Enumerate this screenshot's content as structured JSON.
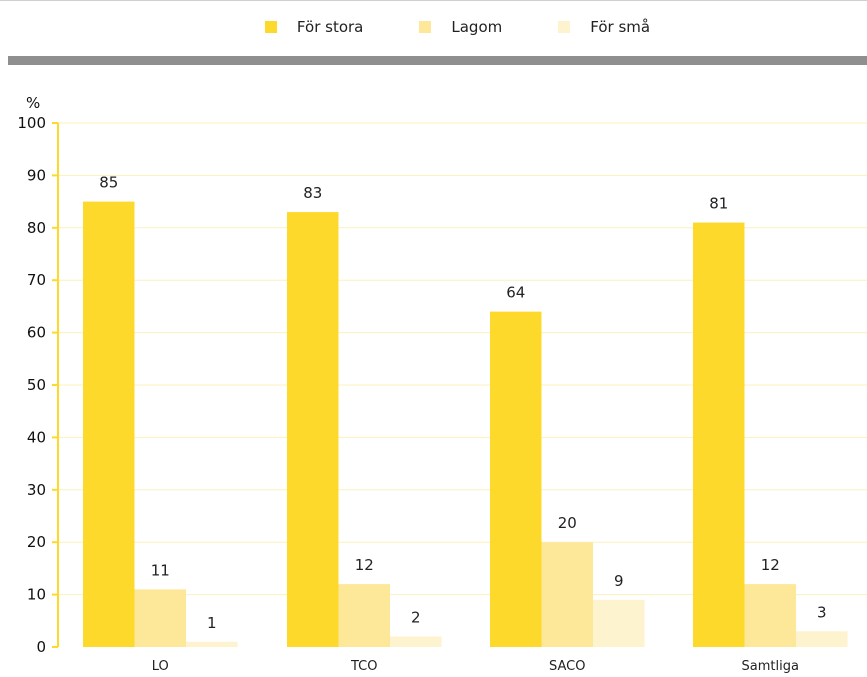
{
  "legend": [
    {
      "label": "För stora",
      "color": "#fdd92c"
    },
    {
      "label": "Lagom",
      "color": "#fde89a"
    },
    {
      "label": "För små",
      "color": "#fdf3cf"
    }
  ],
  "chart_data": {
    "type": "bar",
    "categories": [
      "LO",
      "TCO",
      "SACO",
      "Samtliga"
    ],
    "series": [
      {
        "name": "För stora",
        "values": [
          85,
          83,
          64,
          81
        ],
        "color": "#fdd92c"
      },
      {
        "name": "Lagom",
        "values": [
          11,
          12,
          20,
          12
        ],
        "color": "#fde89a"
      },
      {
        "name": "För små",
        "values": [
          1,
          2,
          9,
          3
        ],
        "color": "#fdf3cf"
      }
    ],
    "ylabel": "%",
    "ylim": [
      0,
      100
    ],
    "yticks": [
      0,
      10,
      20,
      30,
      40,
      50,
      60,
      70,
      80,
      90,
      100
    ],
    "grid": true,
    "legend_position": "top-center"
  }
}
